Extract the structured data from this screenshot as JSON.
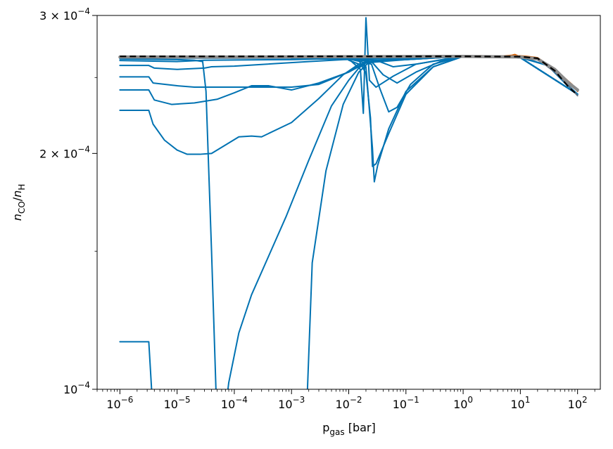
{
  "chart_data": {
    "type": "line",
    "xlabel": "p_gas [bar]",
    "ylabel": "n_CO/n_H",
    "x_scale": "log",
    "y_scale": "log",
    "xlim": [
      4e-07,
      250
    ],
    "ylim": [
      0.0001,
      0.0003
    ],
    "x_major_ticks": [
      {
        "value": 1e-06,
        "base": "10",
        "exp": "−6"
      },
      {
        "value": 1e-05,
        "base": "10",
        "exp": "−5"
      },
      {
        "value": 0.0001,
        "base": "10",
        "exp": "−4"
      },
      {
        "value": 0.001,
        "base": "10",
        "exp": "−3"
      },
      {
        "value": 0.01,
        "base": "10",
        "exp": "−2"
      },
      {
        "value": 0.1,
        "base": "10",
        "exp": "−1"
      },
      {
        "value": 1,
        "base": "10",
        "exp": "0"
      },
      {
        "value": 10,
        "base": "10",
        "exp": "1"
      },
      {
        "value": 100,
        "base": "10",
        "exp": "2"
      }
    ],
    "y_major_ticks": [
      {
        "value": 0.0001,
        "mant": "",
        "base": "10",
        "exp": "−4"
      },
      {
        "value": 0.0002,
        "mant": "2 × ",
        "base": "10",
        "exp": "−4"
      },
      {
        "value": 0.0003,
        "mant": "3 × ",
        "base": "10",
        "exp": "−4"
      }
    ],
    "colors": {
      "blue": "#0072b2",
      "orange": "#d55e00",
      "gray": "#8c8c8c",
      "black": "#000000",
      "slate": "#5a6e80"
    },
    "series": [
      {
        "color": "blue",
        "points": [
          [
            1e-06,
            0.0002646
          ],
          [
            1e-05,
            0.0002646
          ],
          [
            0.0001,
            0.0002646
          ],
          [
            0.001,
            0.0002646
          ],
          [
            0.01,
            0.0002646
          ],
          [
            1,
            0.000266
          ],
          [
            10,
            0.0002655
          ],
          [
            30,
            0.000259
          ],
          [
            60,
            0.000246
          ],
          [
            100,
            0.000238
          ]
        ]
      },
      {
        "color": "blue",
        "points": [
          [
            1e-06,
            0.0002628
          ],
          [
            1e-05,
            0.000262
          ],
          [
            3e-05,
            0.000263
          ],
          [
            0.0001,
            0.0002632
          ],
          [
            0.001,
            0.0002635
          ],
          [
            0.01,
            0.0002645
          ],
          [
            1,
            0.000266
          ],
          [
            10,
            0.0002655
          ],
          [
            30,
            0.000259
          ],
          [
            60,
            0.000246
          ],
          [
            100,
            0.000238
          ]
        ]
      },
      {
        "color": "blue",
        "points": [
          [
            1e-06,
            0.000259
          ],
          [
            3.2e-06,
            0.000259
          ],
          [
            4e-06,
            0.000257
          ],
          [
            1e-05,
            0.000256
          ],
          [
            3e-05,
            0.000257
          ],
          [
            4e-05,
            0.000258
          ],
          [
            0.0001,
            0.0002585
          ],
          [
            0.002,
            0.000262
          ],
          [
            0.008,
            0.0002635
          ],
          [
            0.02,
            0.000264
          ],
          [
            0.1,
            0.0002645
          ],
          [
            1,
            0.000266
          ],
          [
            10,
            0.000265
          ],
          [
            30,
            0.000259
          ],
          [
            100,
            0.000238
          ]
        ]
      },
      {
        "color": "blue",
        "points": [
          [
            1e-06,
            0.0002505
          ],
          [
            3.2e-06,
            0.0002505
          ],
          [
            3.8e-06,
            0.000246
          ],
          [
            1e-05,
            0.000244
          ],
          [
            2e-05,
            0.000243
          ],
          [
            0.0001,
            0.000243
          ],
          [
            0.001,
            0.000243
          ],
          [
            0.003,
            0.000245
          ],
          [
            0.01,
            0.000254
          ],
          [
            0.02,
            0.000261
          ],
          [
            0.1,
            0.0002635
          ],
          [
            1,
            0.000266
          ],
          [
            10,
            0.000265
          ],
          [
            100,
            0.000238
          ]
        ]
      },
      {
        "color": "blue",
        "points": [
          [
            1e-06,
            0.000241
          ],
          [
            3.2e-06,
            0.000241
          ],
          [
            4e-06,
            0.000234
          ],
          [
            8e-06,
            0.000231
          ],
          [
            2e-05,
            0.000232
          ],
          [
            5e-05,
            0.0002345
          ],
          [
            0.0001,
            0.000239
          ],
          [
            0.0002,
            0.000244
          ],
          [
            0.0004,
            0.000244
          ],
          [
            0.001,
            0.000241
          ],
          [
            0.003,
            0.000246
          ],
          [
            0.01,
            0.000254
          ],
          [
            0.02,
            0.000262
          ],
          [
            0.1,
            0.0002635
          ],
          [
            1,
            0.000266
          ],
          [
            10,
            0.000265
          ],
          [
            100,
            0.000238
          ]
        ]
      },
      {
        "color": "blue",
        "points": [
          [
            1e-06,
            0.000227
          ],
          [
            3.2e-06,
            0.000227
          ],
          [
            3.8e-06,
            0.000218
          ],
          [
            6e-06,
            0.000208
          ],
          [
            1e-05,
            0.000202
          ],
          [
            1.5e-05,
            0.0001995
          ],
          [
            2.5e-05,
            0.0001995
          ],
          [
            4e-05,
            0.0002
          ],
          [
            7e-05,
            0.000205
          ],
          [
            0.00012,
            0.00021
          ],
          [
            0.0002,
            0.0002105
          ],
          [
            0.0003,
            0.00021
          ],
          [
            0.001,
            0.000219
          ],
          [
            0.003,
            0.000235
          ],
          [
            0.008,
            0.000252
          ],
          [
            0.015,
            0.00026
          ],
          [
            0.03,
            0.000263
          ],
          [
            0.1,
            0.0002635
          ],
          [
            1,
            0.000266
          ],
          [
            10,
            0.000265
          ],
          [
            100,
            0.000238
          ]
        ]
      },
      {
        "color": "blue",
        "points": [
          [
            1e-06,
            0.000115
          ],
          [
            3.2e-06,
            0.000115
          ],
          [
            3.9e-06,
            9e-05
          ]
        ]
      },
      {
        "color": "blue",
        "points": [
          [
            1e-06,
            0.000264
          ],
          [
            1e-05,
            0.0002635
          ],
          [
            2e-05,
            0.000263
          ],
          [
            2.8e-05,
            0.000262
          ],
          [
            3.2e-05,
            0.00024
          ],
          [
            4e-05,
            0.00015
          ],
          [
            5e-05,
            9e-05
          ]
        ]
      },
      {
        "color": "blue",
        "points": [
          [
            6.5e-05,
            9e-05
          ],
          [
            8e-05,
            0.000102
          ],
          [
            0.00012,
            0.000118
          ],
          [
            0.0002,
            0.000132
          ],
          [
            0.0004,
            0.000148
          ],
          [
            0.0008,
            0.000166
          ],
          [
            0.002,
            0.000196
          ],
          [
            0.005,
            0.00023
          ],
          [
            0.01,
            0.000248
          ],
          [
            0.015,
            0.000257
          ],
          [
            0.02,
            0.000261
          ],
          [
            0.05,
            0.0002635
          ],
          [
            1,
            0.000266
          ],
          [
            10,
            0.000265
          ],
          [
            100,
            0.000238
          ]
        ]
      },
      {
        "color": "blue",
        "points": [
          [
            0.0018,
            9e-05
          ],
          [
            0.0023,
            0.000145
          ],
          [
            0.004,
            0.00019
          ],
          [
            0.008,
            0.000231
          ],
          [
            0.015,
            0.000254
          ],
          [
            0.022,
            0.000261
          ],
          [
            0.05,
            0.0002635
          ],
          [
            1,
            0.000266
          ],
          [
            10,
            0.000265
          ],
          [
            100,
            0.000238
          ]
        ]
      },
      {
        "color": "blue",
        "points": [
          [
            0.001,
            0.000264
          ],
          [
            0.01,
            0.000264
          ],
          [
            0.016,
            0.000256
          ],
          [
            0.018,
            0.000225
          ],
          [
            0.02,
            0.000298
          ],
          [
            0.023,
            0.000248
          ],
          [
            0.03,
            0.000243
          ],
          [
            0.06,
            0.000251
          ],
          [
            0.15,
            0.00026
          ],
          [
            1,
            0.000266
          ],
          [
            10,
            0.000265
          ],
          [
            100,
            0.000238
          ]
        ]
      },
      {
        "color": "blue",
        "points": [
          [
            0.01,
            0.000264
          ],
          [
            0.015,
            0.000263
          ],
          [
            0.02,
            0.000253
          ],
          [
            0.024,
            0.000222
          ],
          [
            0.026,
            0.0001925
          ],
          [
            0.03,
            0.000194
          ],
          [
            0.05,
            0.000212
          ],
          [
            0.1,
            0.000238
          ],
          [
            0.3,
            0.000258
          ],
          [
            1,
            0.000266
          ],
          [
            10,
            0.000265
          ],
          [
            100,
            0.000238
          ]
        ]
      },
      {
        "color": "blue",
        "points": [
          [
            0.01,
            0.000263
          ],
          [
            0.02,
            0.000258
          ],
          [
            0.026,
            0.000203
          ],
          [
            0.028,
            0.000184
          ],
          [
            0.032,
            0.000193
          ],
          [
            0.05,
            0.000215
          ],
          [
            0.1,
            0.00024
          ],
          [
            0.3,
            0.000258
          ],
          [
            1,
            0.000266
          ],
          [
            10,
            0.000265
          ],
          [
            100,
            0.000238
          ]
        ]
      },
      {
        "color": "blue",
        "points": [
          [
            0.01,
            0.000264
          ],
          [
            0.025,
            0.00026
          ],
          [
            0.035,
            0.000242
          ],
          [
            0.05,
            0.000226
          ],
          [
            0.07,
            0.000229
          ],
          [
            0.12,
            0.000245
          ],
          [
            0.3,
            0.00026
          ],
          [
            1,
            0.000266
          ],
          [
            10,
            0.000265
          ],
          [
            100,
            0.000238
          ]
        ]
      },
      {
        "color": "blue",
        "points": [
          [
            0.01,
            0.000264
          ],
          [
            0.025,
            0.000262
          ],
          [
            0.04,
            0.000252
          ],
          [
            0.07,
            0.000246
          ],
          [
            0.15,
            0.000254
          ],
          [
            0.4,
            0.000262
          ],
          [
            1,
            0.000266
          ],
          [
            10,
            0.000265
          ],
          [
            100,
            0.000238
          ]
        ]
      },
      {
        "color": "blue",
        "points": [
          [
            0.01,
            0.000264
          ],
          [
            0.03,
            0.000263
          ],
          [
            0.06,
            0.000258
          ],
          [
            0.15,
            0.00026
          ],
          [
            0.5,
            0.000264
          ],
          [
            1,
            0.000266
          ],
          [
            10,
            0.000265
          ],
          [
            100,
            0.000238
          ]
        ]
      },
      {
        "color": "orange",
        "points": [
          [
            1,
            0.000266
          ],
          [
            2,
            0.0002665
          ],
          [
            4,
            0.000266
          ],
          [
            7,
            0.0002668
          ],
          [
            8,
            0.0002675
          ],
          [
            9,
            0.0002665
          ],
          [
            12,
            0.0002662
          ],
          [
            20,
            0.000265
          ],
          [
            40,
            0.000256
          ],
          [
            80,
            0.000245
          ],
          [
            100,
            0.00024
          ]
        ]
      },
      {
        "color": "slate",
        "points": [
          [
            8,
            0.000266
          ],
          [
            20,
            0.000264
          ],
          [
            40,
            0.000254
          ],
          [
            70,
            0.000244
          ],
          [
            100,
            0.000237
          ]
        ]
      },
      {
        "color": "gray",
        "width": 4.5,
        "points": [
          [
            1e-06,
            0.0002655
          ],
          [
            0.0001,
            0.0002655
          ],
          [
            0.01,
            0.0002658
          ],
          [
            1,
            0.000266
          ],
          [
            10,
            0.0002655
          ],
          [
            20,
            0.000264
          ],
          [
            40,
            0.000256
          ],
          [
            70,
            0.000246
          ],
          [
            100,
            0.000241
          ]
        ]
      },
      {
        "color": "black",
        "width": 2.2,
        "dashed": true,
        "points": [
          [
            1e-06,
            0.000266
          ],
          [
            0.0001,
            0.000266
          ],
          [
            0.01,
            0.000266
          ],
          [
            1,
            0.000266
          ],
          [
            10,
            0.0002658
          ],
          [
            20,
            0.0002645
          ],
          [
            40,
            0.000255
          ],
          [
            70,
            0.000243
          ],
          [
            90,
            0.000239
          ]
        ]
      }
    ]
  }
}
